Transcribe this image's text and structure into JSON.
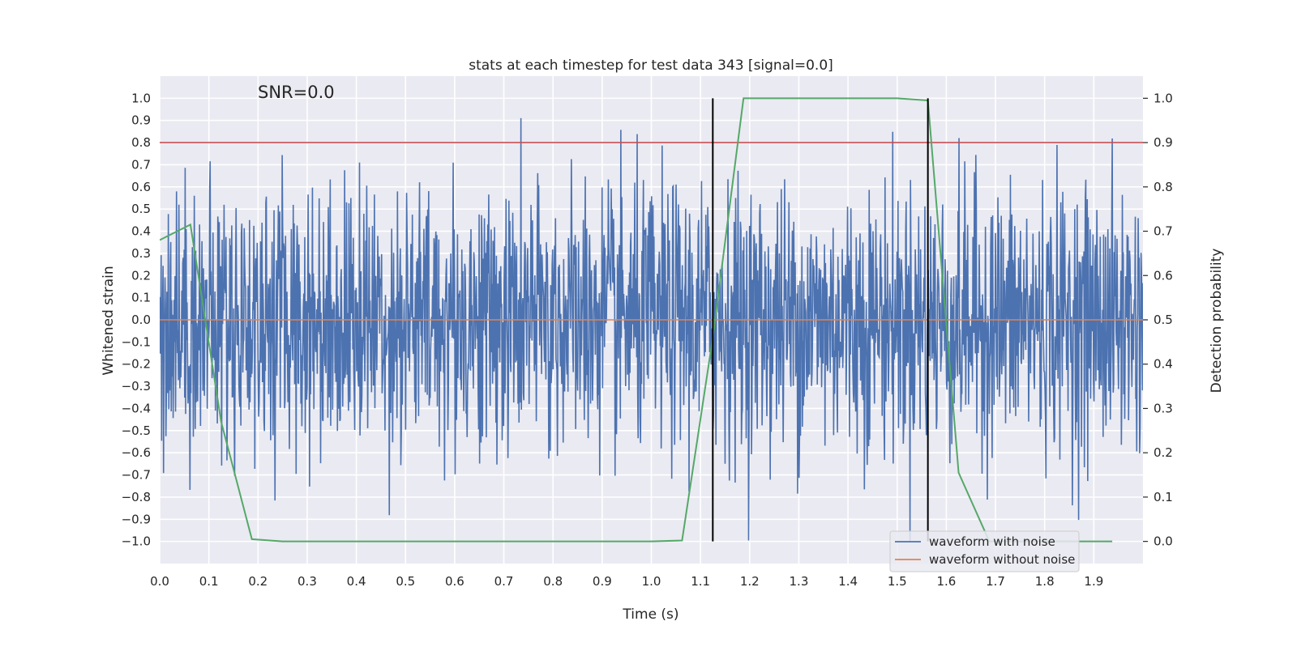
{
  "chart_data": {
    "type": "line",
    "title": "stats at each timestep for test data 343 [signal=0.0]",
    "xlabel": "Time (s)",
    "ylabel": "Whitened strain",
    "y2label": "Detection probability",
    "xlim": [
      0.0,
      2.0
    ],
    "ylim": [
      -1.1,
      1.1
    ],
    "y2lim": [
      -0.05,
      1.05
    ],
    "xticks": [
      "0.0",
      "0.1",
      "0.2",
      "0.3",
      "0.4",
      "0.5",
      "0.6",
      "0.7",
      "0.8",
      "0.9",
      "1.0",
      "1.1",
      "1.2",
      "1.3",
      "1.4",
      "1.5",
      "1.6",
      "1.7",
      "1.8",
      "1.9"
    ],
    "yticks": [
      "1.0",
      "0.9",
      "0.8",
      "0.7",
      "0.6",
      "0.5",
      "0.4",
      "0.3",
      "0.2",
      "0.1",
      "0.0",
      "−0.1",
      "−0.2",
      "−0.3",
      "−0.4",
      "−0.5",
      "−0.6",
      "−0.7",
      "−0.8",
      "−0.9",
      "−1.0"
    ],
    "y2ticks": [
      "1.0",
      "0.9",
      "0.8",
      "0.7",
      "0.6",
      "0.5",
      "0.4",
      "0.3",
      "0.2",
      "0.1",
      "0.0"
    ],
    "grid": true,
    "legend_position": "lower-right",
    "annotation": "SNR=0.0",
    "series": [
      {
        "name": "waveform with noise",
        "color": "#4c72b0",
        "style": "noise",
        "axis": "left",
        "amplitude_std": 0.3,
        "x_range": [
          0.0,
          2.0
        ]
      },
      {
        "name": "waveform without noise",
        "color": "#dd8452",
        "axis": "left",
        "x": [
          0.0,
          2.0
        ],
        "y": [
          0.0,
          0.0
        ]
      },
      {
        "name": "",
        "color": "#55a868",
        "axis": "right",
        "x": [
          0.0,
          0.0625,
          0.125,
          0.1875,
          0.25,
          0.3125,
          0.375,
          0.4375,
          0.5,
          0.5625,
          0.625,
          0.6875,
          0.75,
          0.8125,
          0.875,
          0.9375,
          1.0,
          1.0625,
          1.125,
          1.1875,
          1.25,
          1.3125,
          1.375,
          1.4375,
          1.5,
          1.5625,
          1.625,
          1.6875,
          1.75,
          1.8125,
          1.875,
          1.9375
        ],
        "y": [
          0.68,
          0.715,
          0.27,
          0.005,
          0.0,
          0.0,
          0.0,
          0.0,
          0.0,
          0.0,
          0.0,
          0.0,
          0.0,
          0.0,
          0.0,
          0.0,
          0.0,
          0.002,
          0.46,
          1.0,
          1.0,
          1.0,
          1.0,
          1.0,
          1.0,
          0.995,
          0.155,
          0.0,
          0.0,
          0.0,
          0.0,
          0.0
        ]
      }
    ],
    "threshold_line": {
      "y": 0.8,
      "color": "#c44e52"
    },
    "vertical_lines": [
      {
        "x": 1.125,
        "ymin": -1.0,
        "ymax": 1.0,
        "color": "#000000"
      },
      {
        "x": 1.5625,
        "ymin": -1.0,
        "ymax": 1.0,
        "color": "#000000"
      }
    ]
  }
}
